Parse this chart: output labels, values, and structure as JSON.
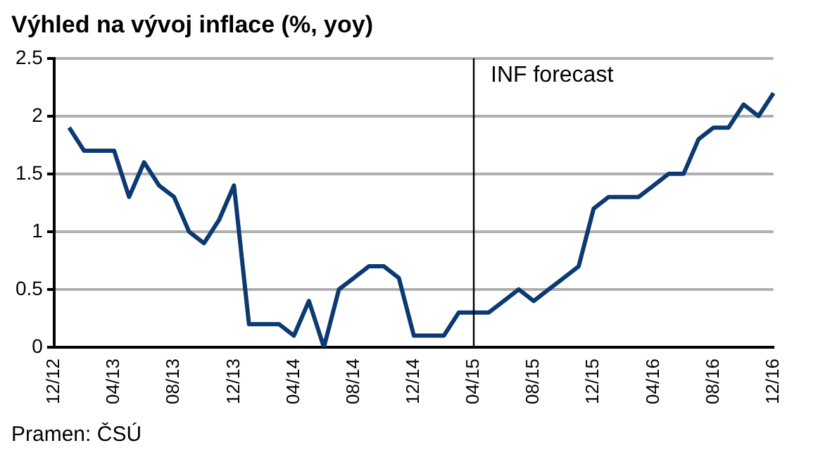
{
  "chart_data": {
    "type": "line",
    "title": "Výhled na vývoj inflace (%, yoy)",
    "categories": [
      "12/12",
      null,
      null,
      null,
      "04/13",
      null,
      null,
      null,
      "08/13",
      null,
      null,
      null,
      "12/13",
      null,
      null,
      null,
      "04/14",
      null,
      null,
      null,
      "08/14",
      null,
      null,
      null,
      "12/14",
      null,
      null,
      null,
      "04/15",
      null,
      null,
      null,
      "08/15",
      null,
      null,
      null,
      "12/15",
      null,
      null,
      null,
      "04/16",
      null,
      null,
      null,
      "08/16",
      null,
      null,
      null,
      "12/16"
    ],
    "series": [
      {
        "color": "#0b3a72",
        "values": [
          null,
          1.9,
          1.7,
          1.7,
          1.7,
          1.3,
          1.6,
          1.4,
          1.3,
          1.0,
          0.9,
          1.1,
          1.4,
          0.2,
          0.2,
          0.2,
          0.1,
          0.4,
          0.0,
          0.5,
          0.6,
          0.7,
          0.7,
          0.6,
          0.1,
          0.1,
          0.1,
          0.3,
          0.3,
          0.3,
          0.4,
          0.5,
          0.4,
          0.5,
          0.6,
          0.7,
          1.2,
          1.3,
          1.3,
          1.3,
          1.4,
          1.5,
          1.5,
          1.8,
          1.9,
          1.9,
          2.1,
          2.0,
          2.2
        ]
      }
    ],
    "ylim": [
      0,
      2.5
    ],
    "yticks": [
      0,
      0.5,
      1,
      1.5,
      2,
      2.5
    ],
    "grid": "y",
    "legend": false,
    "marker": "none",
    "line_style": "solid",
    "ref_lines": [
      {
        "axis": "x",
        "value": "04/15",
        "label": "INF forecast",
        "color": "#000000"
      }
    ],
    "annotations": [
      "Pramen: ČSÚ"
    ]
  }
}
